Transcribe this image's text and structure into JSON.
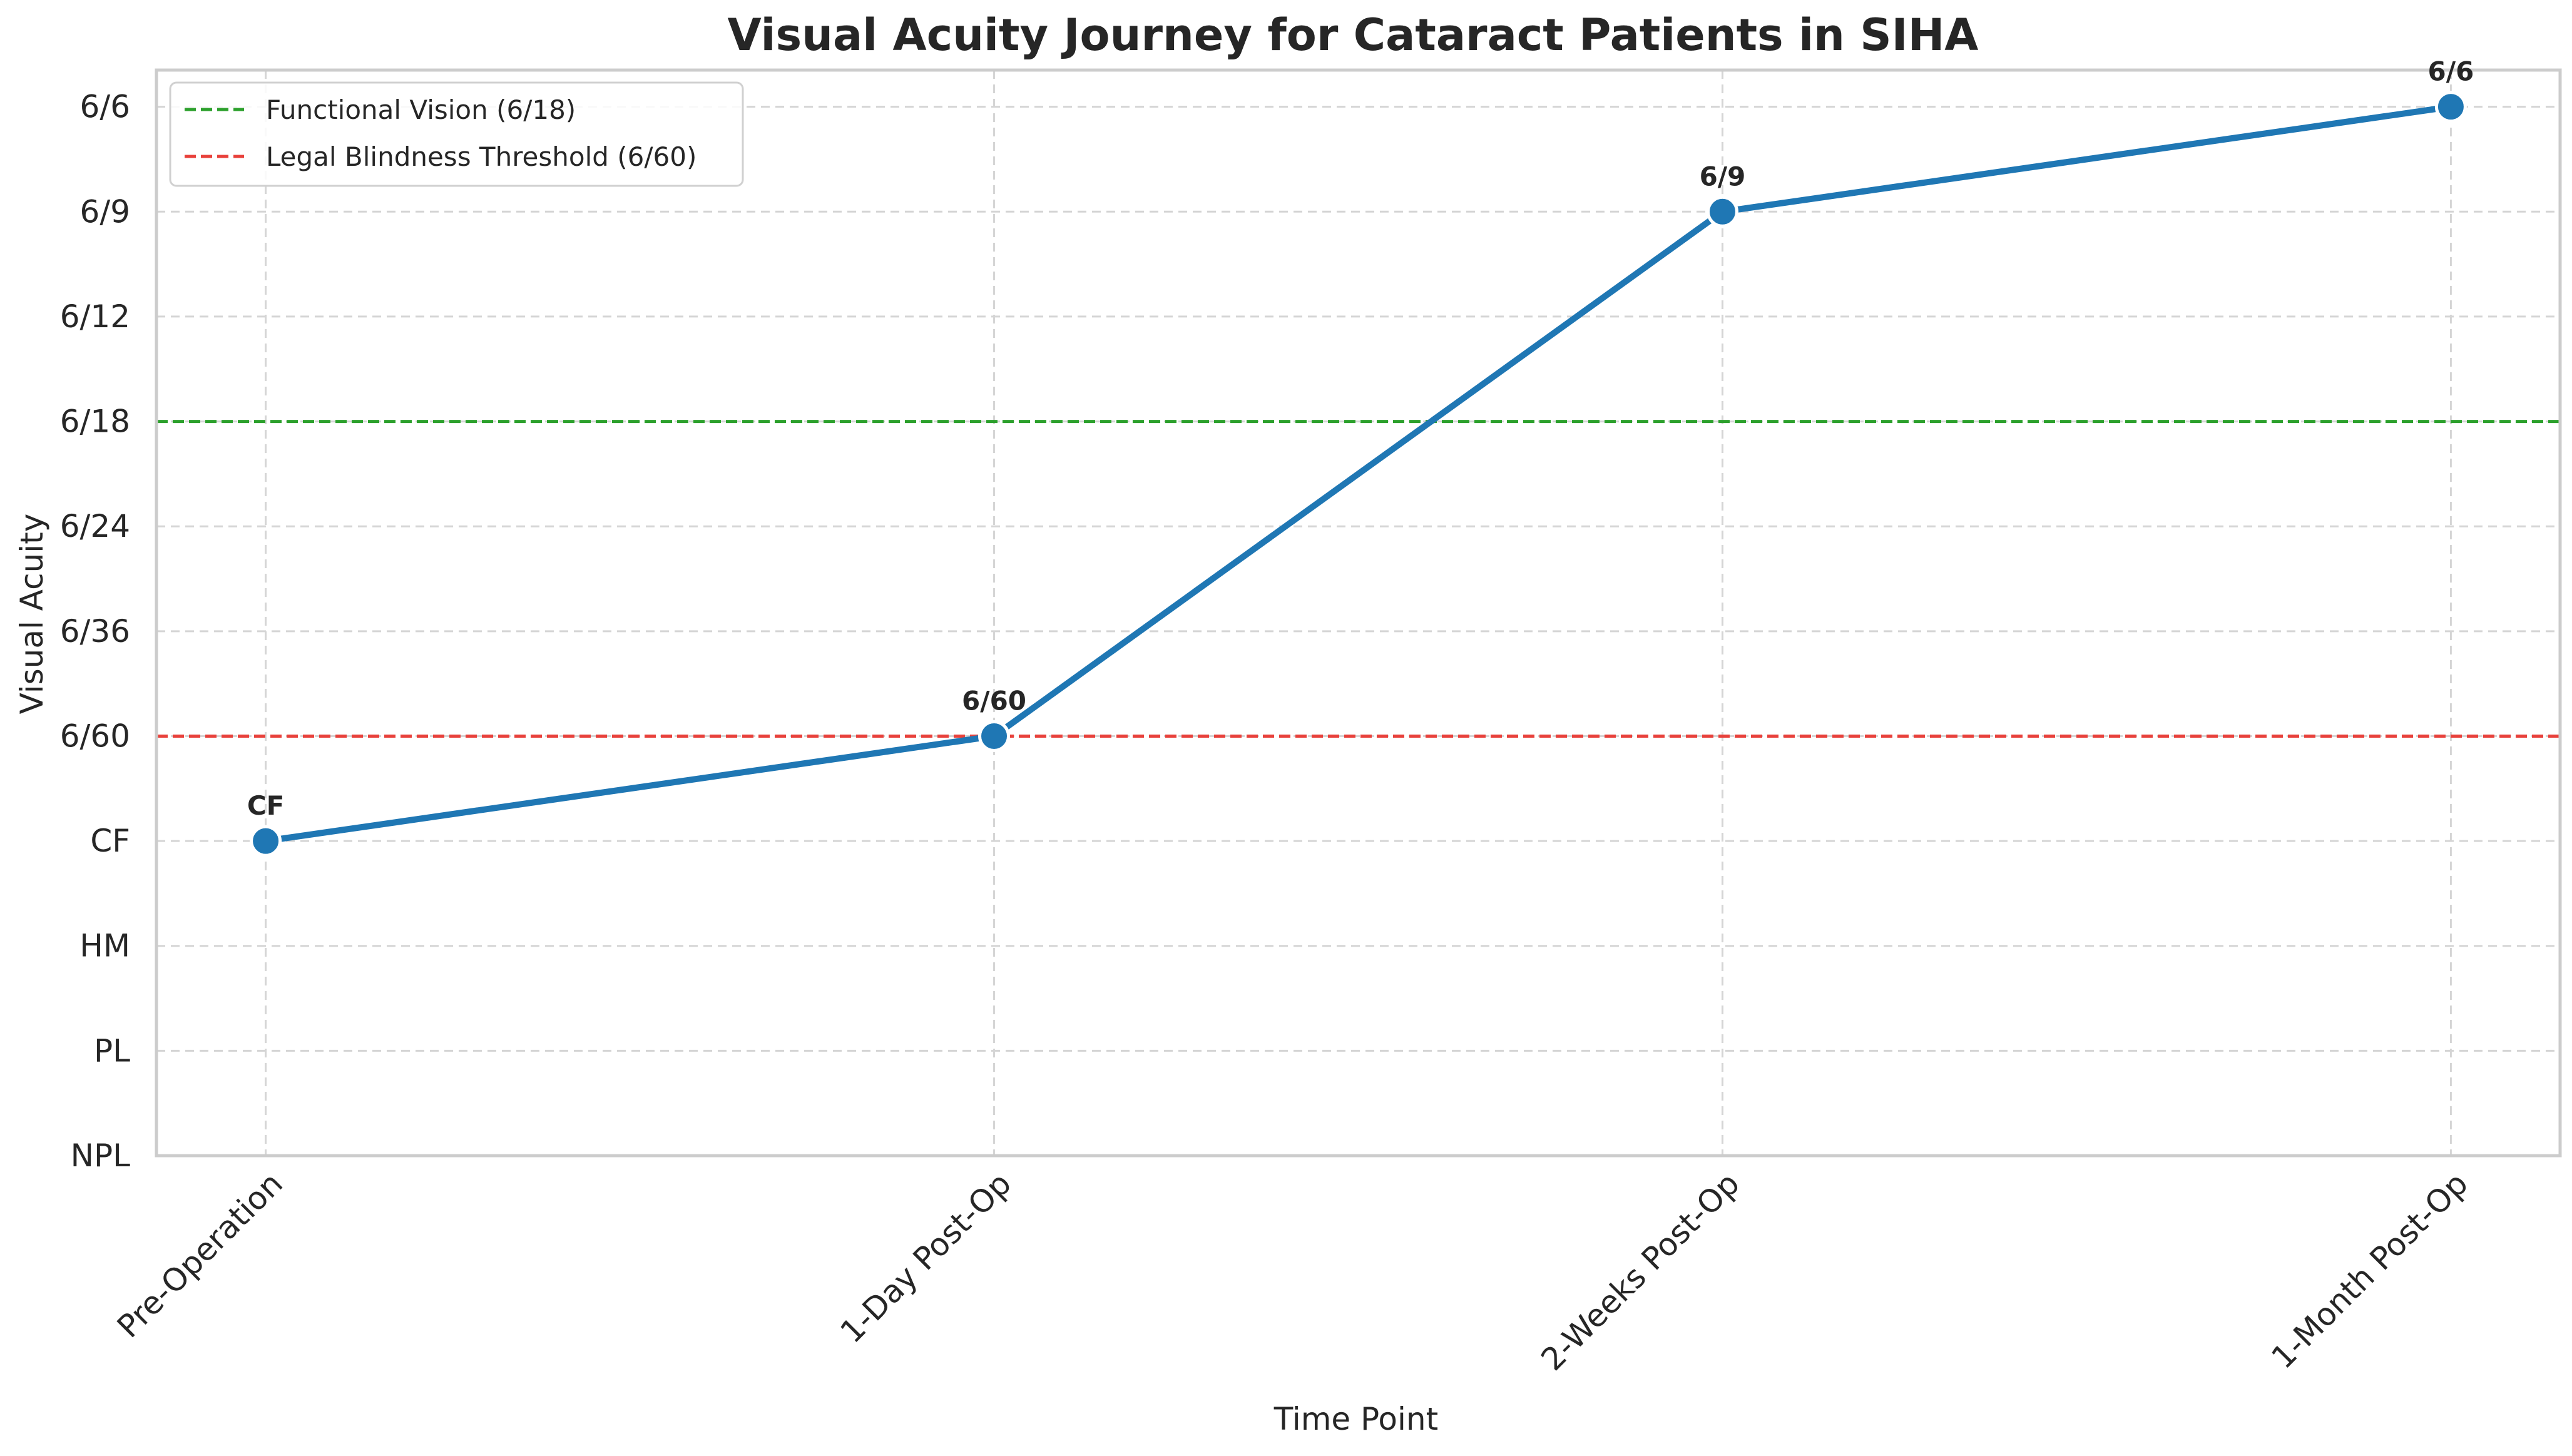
{
  "chart_data": {
    "type": "line",
    "title": "Visual Acuity Journey for Cataract Patients in SIHA",
    "xlabel": "Time Point",
    "ylabel": "Visual Acuity",
    "categories": [
      "Pre-Operation",
      "1-Day Post-Op",
      "2-Weeks Post-Op",
      "1-Month Post-Op"
    ],
    "y_ticks": [
      "NPL",
      "PL",
      "HM",
      "CF",
      "6/60",
      "6/36",
      "6/24",
      "6/18",
      "6/12",
      "6/9",
      "6/6"
    ],
    "series": [
      {
        "values": [
          "CF",
          "6/60",
          "6/9",
          "6/6"
        ],
        "labels": [
          "CF",
          "6/60",
          "6/9",
          "6/6"
        ],
        "color": "#1f77b4"
      }
    ],
    "reference_lines": [
      {
        "label": "Functional Vision (6/18)",
        "value": "6/18",
        "color": "#2ca02c",
        "style": "dashed"
      },
      {
        "label": "Legal Blindness Threshold (6/60)",
        "value": "6/60",
        "color": "#e8403a",
        "style": "dashed"
      }
    ],
    "grid": true,
    "legend": "top-left"
  }
}
